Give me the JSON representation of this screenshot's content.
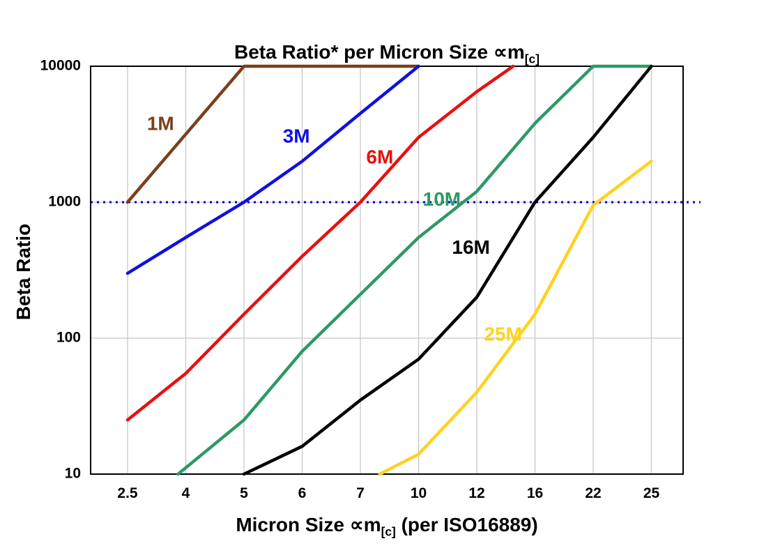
{
  "title": {
    "prefix": "Beta Ratio* per Micron Size ",
    "symbol": "∝m",
    "subscript": "[c]"
  },
  "y_axis": {
    "label": "Beta Ratio",
    "ticks": [
      "10",
      "100",
      "1000",
      "10000"
    ]
  },
  "x_axis": {
    "prefix": "Micron Size ",
    "symbol": "∝m",
    "subscript": "[c]",
    "suffix": " (per ISO16889)",
    "ticks": [
      "2.5",
      "4",
      "5",
      "6",
      "7",
      "10",
      "12",
      "16",
      "22",
      "25"
    ]
  },
  "chart_data": {
    "type": "line",
    "x_scale": "categorical",
    "y_scale": "log",
    "categories": [
      2.5,
      4,
      5,
      6,
      7,
      10,
      12,
      16,
      22,
      25
    ],
    "ylim": [
      10,
      10000
    ],
    "grid": {
      "vertical": true,
      "horizontal_values": [
        100,
        1000
      ],
      "color": "#c8c8c8"
    },
    "reference_line": {
      "y": 1000,
      "color": "#0000cc",
      "style": "dotted"
    },
    "series": [
      {
        "name": "1M",
        "color": "#7b3f19",
        "label_pos": {
          "x": 3.35,
          "y": 3700
        },
        "points": [
          [
            2.5,
            1000
          ],
          [
            5,
            10000
          ],
          [
            10,
            10000
          ]
        ]
      },
      {
        "name": "3M",
        "color": "#1010e0",
        "label_pos": {
          "x": 5.9,
          "y": 3000
        },
        "points": [
          [
            2.5,
            300
          ],
          [
            4,
            550
          ],
          [
            5,
            1000
          ],
          [
            6,
            2000
          ],
          [
            7,
            4500
          ],
          [
            10,
            10000
          ]
        ]
      },
      {
        "name": "6M",
        "color": "#e81010",
        "label_pos": {
          "x": 8.0,
          "y": 2100
        },
        "points": [
          [
            2.5,
            25
          ],
          [
            4,
            55
          ],
          [
            5,
            150
          ],
          [
            6,
            400
          ],
          [
            7,
            1000
          ],
          [
            10,
            3000
          ],
          [
            12,
            6500
          ],
          [
            14.5,
            10000
          ]
        ]
      },
      {
        "name": "10M",
        "color": "#2e9966",
        "label_pos": {
          "x": 10.8,
          "y": 1030
        },
        "points": [
          [
            3.8,
            10
          ],
          [
            5,
            25
          ],
          [
            6,
            80
          ],
          [
            7,
            210
          ],
          [
            10,
            550
          ],
          [
            12,
            1200
          ],
          [
            16,
            3800
          ],
          [
            22,
            10000
          ],
          [
            25,
            10000
          ]
        ]
      },
      {
        "name": "16M",
        "color": "#000000",
        "label_pos": {
          "x": 11.8,
          "y": 455
        },
        "points": [
          [
            5,
            10
          ],
          [
            6,
            16
          ],
          [
            7,
            35
          ],
          [
            10,
            70
          ],
          [
            12,
            200
          ],
          [
            16,
            1000
          ],
          [
            22,
            3000
          ],
          [
            25,
            10000
          ]
        ]
      },
      {
        "name": "25M",
        "color": "#ffd21e",
        "label_pos": {
          "x": 13.8,
          "y": 105
        },
        "points": [
          [
            8,
            10
          ],
          [
            10,
            14
          ],
          [
            12,
            40
          ],
          [
            16,
            150
          ],
          [
            22,
            950
          ],
          [
            25,
            2000
          ]
        ]
      }
    ]
  }
}
